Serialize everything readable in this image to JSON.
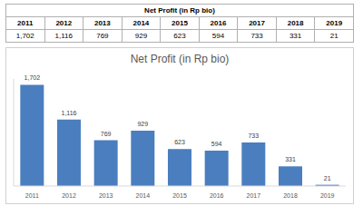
{
  "table": {
    "title": "Net Profit (in Rp bio)",
    "header": [
      "2011",
      "2012",
      "2013",
      "2014",
      "2015",
      "2016",
      "2017",
      "2018",
      "2019"
    ],
    "rows": [
      [
        "1,702",
        "1,116",
        "769",
        "929",
        "623",
        "594",
        "733",
        "331",
        "21"
      ]
    ]
  },
  "chart_data": {
    "type": "bar",
    "title": "Net Profit (in Rp bio)",
    "categories": [
      "2011",
      "2012",
      "2013",
      "2014",
      "2015",
      "2016",
      "2017",
      "2018",
      "2019"
    ],
    "values": [
      1702,
      1116,
      769,
      929,
      623,
      594,
      733,
      331,
      21
    ],
    "value_labels": [
      "1,702",
      "1,116",
      "769",
      "929",
      "623",
      "594",
      "733",
      "331",
      "21"
    ],
    "data_labels": true,
    "color": "#4a7ebf",
    "ylim": [
      0,
      1800
    ],
    "tick_labels": "x",
    "grid": false
  }
}
